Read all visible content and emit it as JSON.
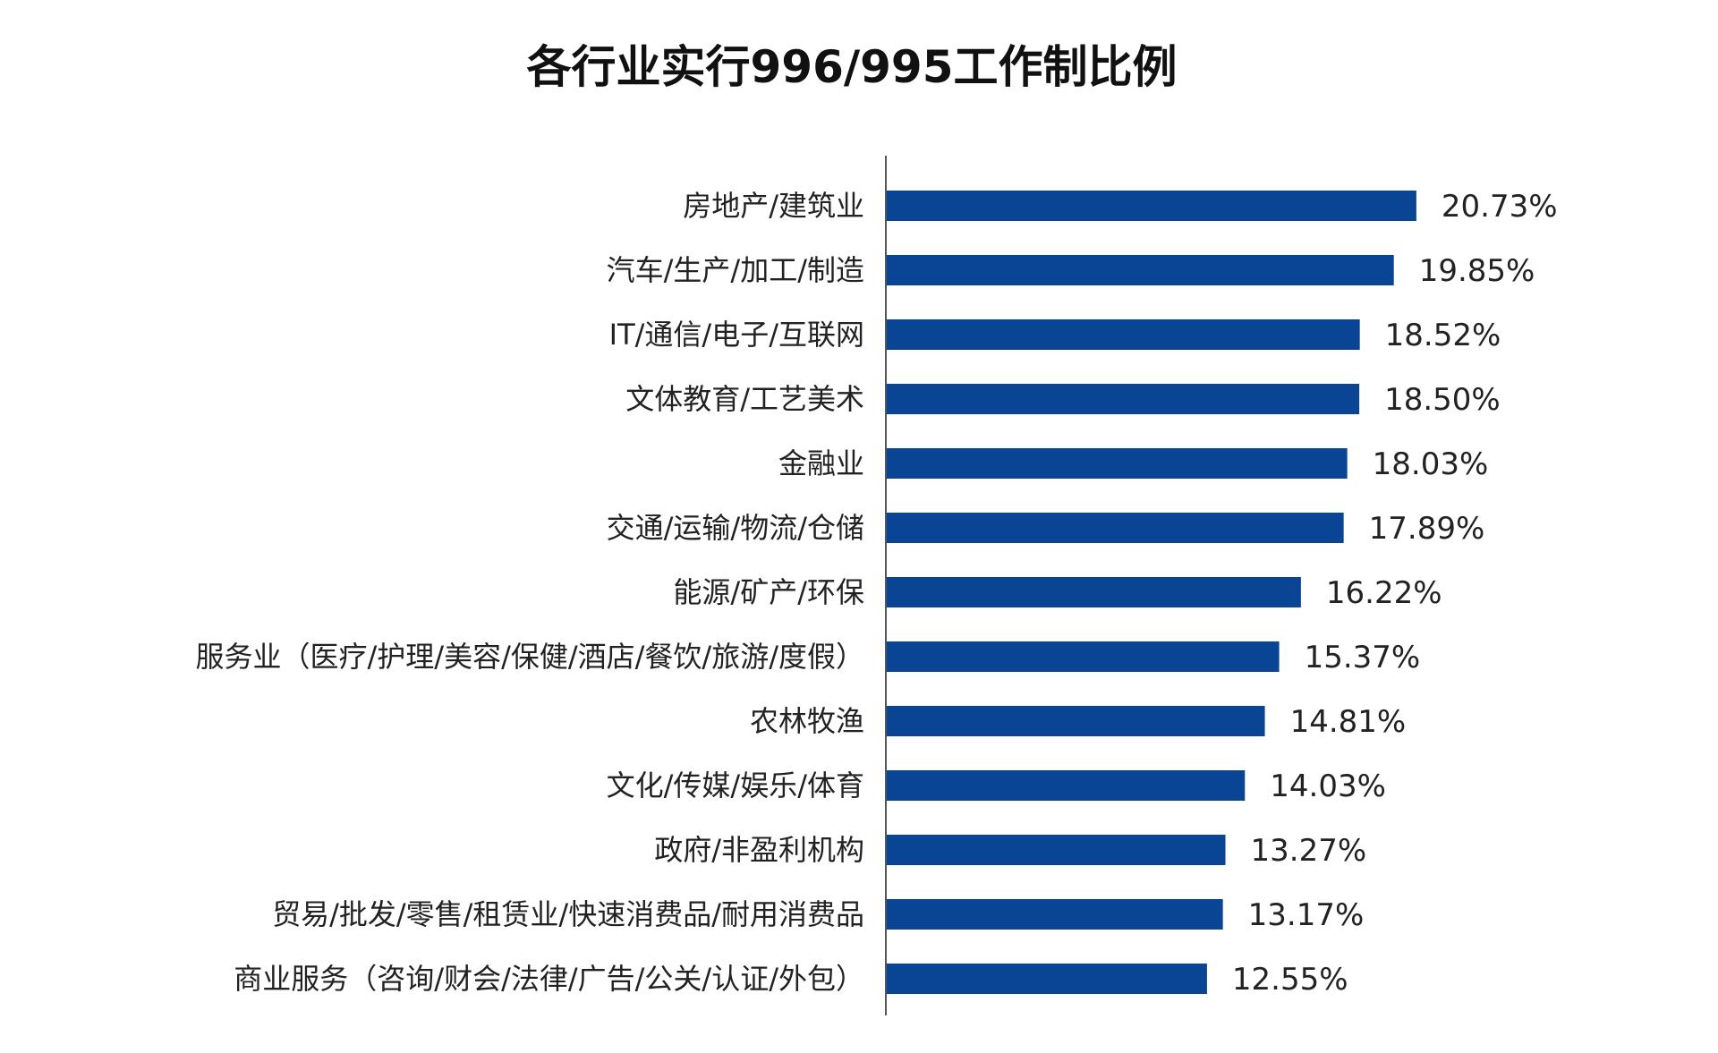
{
  "chart_data": {
    "type": "bar",
    "orientation": "horizontal",
    "title": "各行业实行996/995工作制比例",
    "xlabel": "",
    "ylabel": "",
    "grid": false,
    "legend": "none",
    "bar_color": "#0a4595",
    "axis_color": "#555555",
    "xlim": [
      0,
      30
    ],
    "categories": [
      "房地产/建筑业",
      "汽车/生产/加工/制造",
      "IT/通信/电子/互联网",
      "文体教育/工艺美术",
      "金融业",
      "交通/运输/物流/仓储",
      "能源/矿产/环保",
      "服务业（医疗/护理/美容/保健/酒店/餐饮/旅游/度假）",
      "农林牧渔",
      "文化/传媒/娱乐/体育",
      "政府/非盈利机构",
      "贸易/批发/零售/租赁业/快速消费品/耐用消费品",
      "商业服务（咨询/财会/法律/广告/公关/认证/外包）"
    ],
    "values": [
      20.73,
      19.85,
      18.52,
      18.5,
      18.03,
      17.89,
      16.22,
      15.37,
      14.81,
      14.03,
      13.27,
      13.17,
      12.55
    ],
    "value_labels": [
      "20.73%",
      "19.85%",
      "18.52%",
      "18.50%",
      "18.03%",
      "17.89%",
      "16.22%",
      "15.37%",
      "14.81%",
      "14.03%",
      "13.27%",
      "13.17%",
      "12.55%"
    ]
  }
}
